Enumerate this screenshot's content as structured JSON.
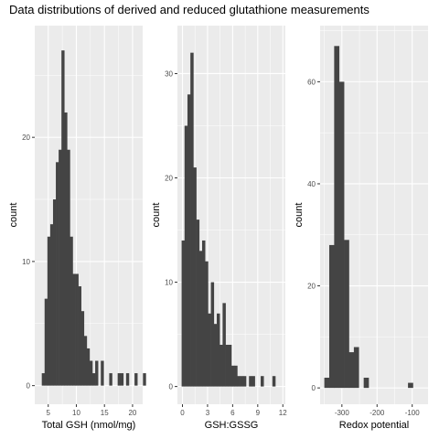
{
  "figure": {
    "title": "Data distributions of derived and reduced glutathione measurements",
    "panel_background": "#ebebeb",
    "grid_color": "#ffffff",
    "bar_color": "#444444"
  },
  "chart_data": [
    {
      "type": "bar",
      "xlabel": "Total GSH (nmol/mg)",
      "ylabel": "count",
      "xlim": [
        2.6,
        21.8
      ],
      "ylim": [
        -1.5,
        29
      ],
      "xticks": [
        5,
        10,
        15,
        20
      ],
      "yticks": [
        0,
        10,
        20
      ],
      "x_start": 3.85,
      "bin_width": 0.5,
      "values": [
        1,
        7,
        12,
        13,
        15,
        18,
        19,
        27,
        22,
        19,
        12,
        9,
        9,
        8,
        6,
        4,
        3,
        2,
        1,
        2,
        0,
        2,
        0,
        0,
        1,
        0,
        0,
        1,
        1,
        0,
        1,
        0,
        0,
        1,
        0,
        0,
        1
      ]
    },
    {
      "type": "bar",
      "xlabel": "GSH:GSSG",
      "ylabel": "count",
      "xlim": [
        -0.6,
        12.3
      ],
      "ylim": [
        -1.7,
        34.6
      ],
      "xticks": [
        0,
        3,
        6,
        9,
        12
      ],
      "xtick_labels": [
        "0",
        "3",
        "6",
        "9",
        "12"
      ],
      "yticks": [
        0,
        10,
        20,
        30
      ],
      "x_start": -0.1,
      "bin_width": 0.35,
      "values": [
        14,
        25,
        28,
        32,
        21,
        16,
        13,
        14,
        12,
        7,
        10,
        6,
        7,
        4,
        8,
        4,
        4,
        2,
        2,
        1,
        1,
        1,
        0,
        1,
        1,
        0,
        0,
        1,
        0,
        0,
        0,
        1
      ]
    },
    {
      "type": "bar",
      "xlabel": "Redox potential",
      "ylabel": "count",
      "xlim": [
        -362,
        -55
      ],
      "ylim": [
        -3.2,
        71
      ],
      "xticks": [
        -300,
        -200,
        -100
      ],
      "yticks": [
        0,
        20,
        40,
        60
      ],
      "x_start": -350,
      "bin_width": 14,
      "values": [
        2,
        28,
        67,
        60,
        29,
        7,
        8,
        0,
        2,
        0,
        0,
        0,
        0,
        0,
        0,
        0,
        0,
        1
      ]
    }
  ]
}
